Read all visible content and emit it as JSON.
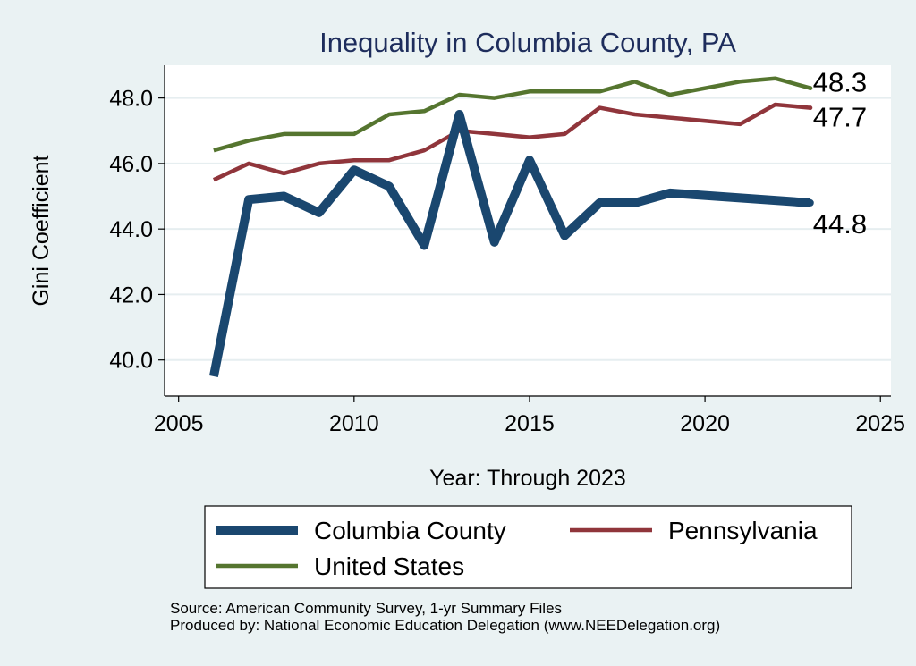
{
  "chart_data": {
    "type": "line",
    "title": "Inequality in Columbia County, PA",
    "xlabel": "Year: Through 2023",
    "ylabel": "Gini Coefficient",
    "xlim": [
      2004.6,
      2025.3
    ],
    "ylim": [
      38.9,
      49.0
    ],
    "x_ticks": [
      2005,
      2010,
      2015,
      2020,
      2025
    ],
    "x_tick_labels": [
      "2005",
      "2010",
      "2015",
      "2020",
      "2025"
    ],
    "y_ticks": [
      40,
      42,
      44,
      46,
      48
    ],
    "y_tick_labels": [
      "40.0",
      "42.0",
      "44.0",
      "46.0",
      "48.0"
    ],
    "grid": true,
    "legend_position": "bottom",
    "series": [
      {
        "name": "Columbia County",
        "color": "#1a476f",
        "x": [
          2006,
          2007,
          2008,
          2009,
          2010,
          2011,
          2012,
          2013,
          2014,
          2015,
          2016,
          2017,
          2018,
          2019,
          2023
        ],
        "values": [
          39.5,
          44.9,
          45.0,
          44.5,
          45.8,
          45.3,
          43.5,
          47.5,
          43.6,
          46.1,
          43.8,
          44.8,
          44.8,
          45.1,
          44.8
        ],
        "end_label": "44.8"
      },
      {
        "name": "Pennsylvania",
        "color": "#90353b",
        "x": [
          2006,
          2007,
          2008,
          2009,
          2010,
          2011,
          2012,
          2013,
          2014,
          2015,
          2016,
          2017,
          2018,
          2019,
          2021,
          2022,
          2023
        ],
        "values": [
          45.5,
          46.0,
          45.7,
          46.0,
          46.1,
          46.1,
          46.4,
          47.0,
          46.9,
          46.8,
          46.9,
          47.7,
          47.5,
          47.4,
          47.2,
          47.8,
          47.7
        ],
        "end_label": "47.7"
      },
      {
        "name": "United States",
        "color": "#55752f",
        "x": [
          2006,
          2007,
          2008,
          2009,
          2010,
          2011,
          2012,
          2013,
          2014,
          2015,
          2016,
          2017,
          2018,
          2019,
          2021,
          2022,
          2023
        ],
        "values": [
          46.4,
          46.7,
          46.9,
          46.9,
          46.9,
          47.5,
          47.6,
          48.1,
          48.0,
          48.2,
          48.2,
          48.2,
          48.5,
          48.1,
          48.5,
          48.6,
          48.3
        ],
        "end_label": "48.3"
      }
    ]
  },
  "footer": {
    "source": "Source: American Community Survey, 1-yr Summary Files",
    "produced_by": "Produced by: National Economic Education Delegation (www.NEEDelegation.org)"
  }
}
